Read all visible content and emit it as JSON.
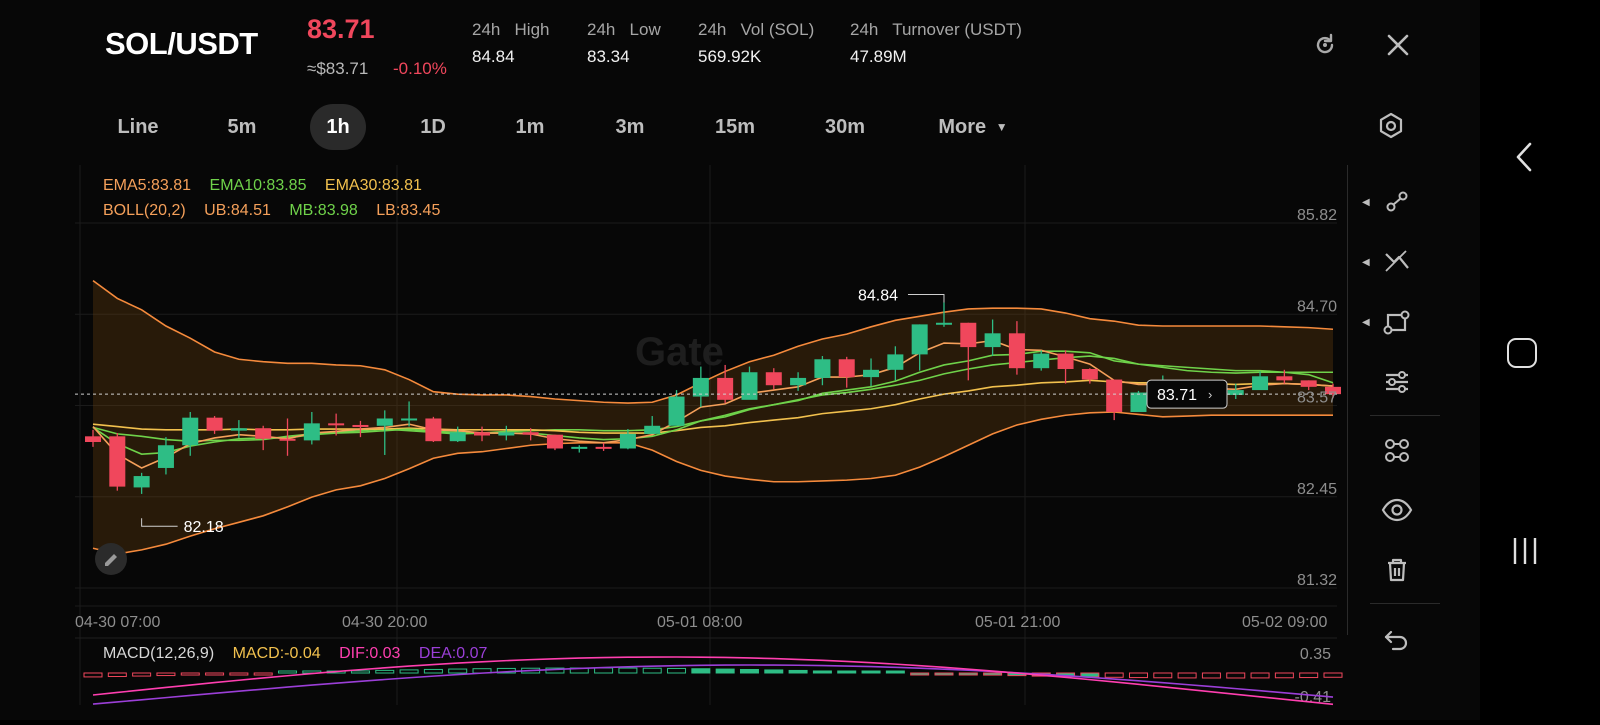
{
  "header": {
    "pair": "SOL/USDT",
    "price": "83.71",
    "approx": "≈$83.71",
    "change": "-0.10%",
    "stats": [
      {
        "label": "24h   High",
        "value": "84.84"
      },
      {
        "label": "24h   Low",
        "value": "83.34"
      },
      {
        "label": "24h   Vol (SOL)",
        "value": "569.92K"
      },
      {
        "label": "24h   Turnover (USDT)",
        "value": "47.89M"
      }
    ]
  },
  "tabs": [
    {
      "label": "Line"
    },
    {
      "label": "5m"
    },
    {
      "label": "1h",
      "active": true
    },
    {
      "label": "1D"
    },
    {
      "label": "1m"
    },
    {
      "label": "3m"
    },
    {
      "label": "15m"
    },
    {
      "label": "30m"
    },
    {
      "label": "More"
    }
  ],
  "legend": {
    "ema5": "EMA5:83.81",
    "ema10": "EMA10:83.85",
    "ema30": "EMA30:83.81",
    "boll": "BOLL(20,2)",
    "ub": "UB:84.51",
    "mb": "MB:83.98",
    "lb": "LB:83.45"
  },
  "macd_legend": {
    "name": "MACD(12,26,9)",
    "macd": "MACD:-0.04",
    "dif": "DIF:0.03",
    "dea": "DEA:0.07"
  },
  "watermark": "Gate",
  "colors": {
    "up": "#2ebd85",
    "down": "#f0475c",
    "ema5": "#f5a05a",
    "ema10": "#6fd24a",
    "ema30": "#f2c14e",
    "boll": "#f58a3c",
    "dif": "#ff3fb0",
    "dea": "#9b3fd8"
  },
  "chart_data": {
    "type": "candlestick",
    "interval": "1h",
    "y_ticks": [
      "85.82",
      "84.70",
      "83.57",
      "82.45",
      "81.32"
    ],
    "y_range": [
      81.32,
      85.82
    ],
    "x_ticks": [
      "04-30 07:00",
      "04-30 20:00",
      "05-01 08:00",
      "05-01 21:00",
      "05-02 09:00"
    ],
    "current_price": "83.71",
    "high_marker": "84.84",
    "low_marker": "82.18",
    "candles": [
      [
        83.19,
        83.12,
        83.27,
        83.06
      ],
      [
        83.19,
        82.57,
        83.23,
        82.52
      ],
      [
        82.56,
        82.7,
        82.74,
        82.48
      ],
      [
        82.8,
        83.08,
        83.18,
        82.72
      ],
      [
        83.08,
        83.42,
        83.49,
        82.95
      ],
      [
        83.42,
        83.26,
        83.44,
        83.22
      ],
      [
        83.26,
        83.29,
        83.39,
        83.17
      ],
      [
        83.29,
        83.16,
        83.32,
        83.02
      ],
      [
        83.16,
        83.14,
        83.41,
        82.95
      ],
      [
        83.14,
        83.35,
        83.49,
        83.09
      ],
      [
        83.35,
        83.33,
        83.47,
        83.2
      ],
      [
        83.33,
        83.32,
        83.38,
        83.18
      ],
      [
        83.32,
        83.41,
        83.51,
        82.96
      ],
      [
        83.41,
        83.41,
        83.62,
        83.31
      ],
      [
        83.41,
        83.13,
        83.43,
        83.12
      ],
      [
        83.13,
        83.24,
        83.31,
        83.12
      ],
      [
        83.24,
        83.2,
        83.31,
        83.13
      ],
      [
        83.2,
        83.24,
        83.32,
        83.14
      ],
      [
        83.24,
        83.21,
        83.29,
        83.14
      ],
      [
        83.21,
        83.04,
        83.21,
        83.02
      ],
      [
        83.04,
        83.06,
        83.08,
        82.99
      ],
      [
        83.06,
        83.04,
        83.11,
        83.01
      ],
      [
        83.04,
        83.22,
        83.28,
        83.03
      ],
      [
        83.22,
        83.32,
        83.44,
        83.24
      ],
      [
        83.32,
        83.68,
        83.76,
        83.36
      ],
      [
        83.68,
        83.91,
        84.05,
        83.55
      ],
      [
        83.91,
        83.64,
        84.07,
        83.6
      ],
      [
        83.64,
        83.98,
        84.05,
        83.84
      ],
      [
        83.98,
        83.82,
        84.03,
        83.77
      ],
      [
        83.82,
        83.91,
        83.98,
        83.75
      ],
      [
        83.91,
        84.14,
        84.18,
        83.82
      ],
      [
        84.14,
        83.92,
        84.17,
        83.79
      ],
      [
        83.92,
        84.01,
        84.15,
        83.81
      ],
      [
        84.01,
        84.2,
        84.3,
        83.88
      ],
      [
        84.2,
        84.57,
        84.57,
        84.0
      ],
      [
        84.57,
        84.59,
        84.84,
        84.54
      ],
      [
        84.59,
        84.29,
        84.59,
        83.88
      ],
      [
        84.29,
        84.46,
        84.63,
        84.18
      ],
      [
        84.46,
        84.03,
        84.61,
        83.95
      ],
      [
        84.03,
        84.21,
        84.25,
        84.0
      ],
      [
        84.21,
        84.02,
        84.25,
        83.84
      ],
      [
        84.02,
        83.89,
        84.03,
        83.84
      ],
      [
        83.89,
        83.49,
        83.89,
        83.39
      ],
      [
        83.49,
        83.73,
        83.75,
        83.55
      ],
      [
        83.73,
        83.84,
        83.94,
        83.7
      ],
      [
        83.84,
        83.78,
        83.86,
        83.61
      ],
      [
        83.78,
        83.7,
        83.84,
        83.64
      ],
      [
        83.7,
        83.76,
        83.84,
        83.65
      ],
      [
        83.76,
        83.93,
        83.99,
        83.79
      ],
      [
        83.93,
        83.88,
        84.01,
        83.84
      ],
      [
        83.88,
        83.8,
        83.88,
        83.76
      ],
      [
        83.8,
        83.71,
        83.84,
        83.66
      ]
    ],
    "boll": {
      "ub": [
        85.11,
        84.89,
        84.75,
        84.55,
        84.4,
        84.23,
        84.14,
        84.11,
        84.09,
        84.09,
        84.07,
        84.06,
        84.01,
        83.89,
        83.74,
        83.71,
        83.7,
        83.7,
        83.68,
        83.65,
        83.63,
        83.61,
        83.6,
        83.61,
        83.7,
        83.85,
        83.99,
        84.11,
        84.19,
        84.3,
        84.39,
        84.45,
        84.54,
        84.62,
        84.67,
        84.72,
        84.76,
        84.77,
        84.77,
        84.76,
        84.71,
        84.64,
        84.61,
        84.56,
        84.55,
        84.55,
        84.55,
        84.55,
        84.55,
        84.54,
        84.53,
        84.51
      ],
      "mb": [
        83.3,
        83.22,
        83.19,
        83.15,
        83.13,
        83.14,
        83.14,
        83.15,
        83.19,
        83.22,
        83.24,
        83.26,
        83.28,
        83.26,
        83.24,
        83.22,
        83.23,
        83.25,
        83.26,
        83.27,
        83.27,
        83.26,
        83.26,
        83.27,
        83.31,
        83.38,
        83.45,
        83.53,
        83.58,
        83.64,
        83.7,
        83.73,
        83.77,
        83.82,
        83.88,
        83.96,
        84.02,
        84.07,
        84.1,
        84.13,
        84.16,
        84.18,
        84.15,
        84.08,
        84.04,
        84.0,
        83.98,
        83.97,
        83.98,
        83.98,
        83.98,
        83.98
      ],
      "lb": [
        81.81,
        81.74,
        81.79,
        81.86,
        81.96,
        82.05,
        82.13,
        82.21,
        82.32,
        82.44,
        82.53,
        82.58,
        82.67,
        82.79,
        82.92,
        82.98,
        83.0,
        83.04,
        83.08,
        83.1,
        83.11,
        83.11,
        83.11,
        83.02,
        82.88,
        82.77,
        82.7,
        82.66,
        82.63,
        82.63,
        82.64,
        82.65,
        82.67,
        82.71,
        82.81,
        82.94,
        83.08,
        83.22,
        83.33,
        83.4,
        83.45,
        83.48,
        83.49,
        83.46,
        83.43,
        83.44,
        83.45,
        83.45,
        83.45,
        83.45,
        83.45,
        83.45
      ]
    },
    "ema5": [
      83.31,
      82.97,
      82.8,
      82.93,
      83.1,
      83.17,
      83.21,
      83.19,
      83.16,
      83.23,
      83.25,
      83.28,
      83.3,
      83.34,
      83.27,
      83.26,
      83.23,
      83.23,
      83.22,
      83.16,
      83.13,
      83.11,
      83.15,
      83.21,
      83.37,
      83.55,
      83.59,
      83.72,
      83.76,
      83.8,
      83.92,
      83.92,
      83.95,
      84.04,
      84.22,
      84.34,
      84.33,
      84.37,
      84.26,
      84.25,
      84.17,
      84.08,
      83.88,
      83.83,
      83.83,
      83.82,
      83.78,
      83.77,
      83.82,
      83.84,
      83.83,
      83.81
    ],
    "ema10": [
      83.3,
      83.1,
      82.97,
      82.99,
      83.07,
      83.12,
      83.16,
      83.17,
      83.17,
      83.21,
      83.23,
      83.24,
      83.26,
      83.28,
      83.25,
      83.24,
      83.23,
      83.23,
      83.23,
      83.2,
      83.17,
      83.15,
      83.16,
      83.19,
      83.27,
      83.38,
      83.43,
      83.52,
      83.58,
      83.63,
      83.72,
      83.76,
      83.8,
      83.87,
      83.98,
      84.07,
      84.12,
      84.19,
      84.2,
      84.24,
      84.24,
      84.22,
      84.12,
      84.08,
      84.06,
      84.04,
      84.02,
      84.0,
      84.0,
      83.98,
      83.95,
      83.85
    ],
    "ema30": [
      83.34,
      83.31,
      83.28,
      83.27,
      83.27,
      83.27,
      83.28,
      83.27,
      83.27,
      83.28,
      83.28,
      83.28,
      83.28,
      83.29,
      83.28,
      83.27,
      83.27,
      83.27,
      83.27,
      83.26,
      83.24,
      83.23,
      83.23,
      83.23,
      83.26,
      83.3,
      83.32,
      83.36,
      83.39,
      83.42,
      83.47,
      83.5,
      83.53,
      83.58,
      83.65,
      83.71,
      83.75,
      83.8,
      83.82,
      83.85,
      83.86,
      83.88,
      83.86,
      83.85,
      83.85,
      83.84,
      83.84,
      83.83,
      83.84,
      83.84,
      83.83,
      83.81
    ]
  }
}
